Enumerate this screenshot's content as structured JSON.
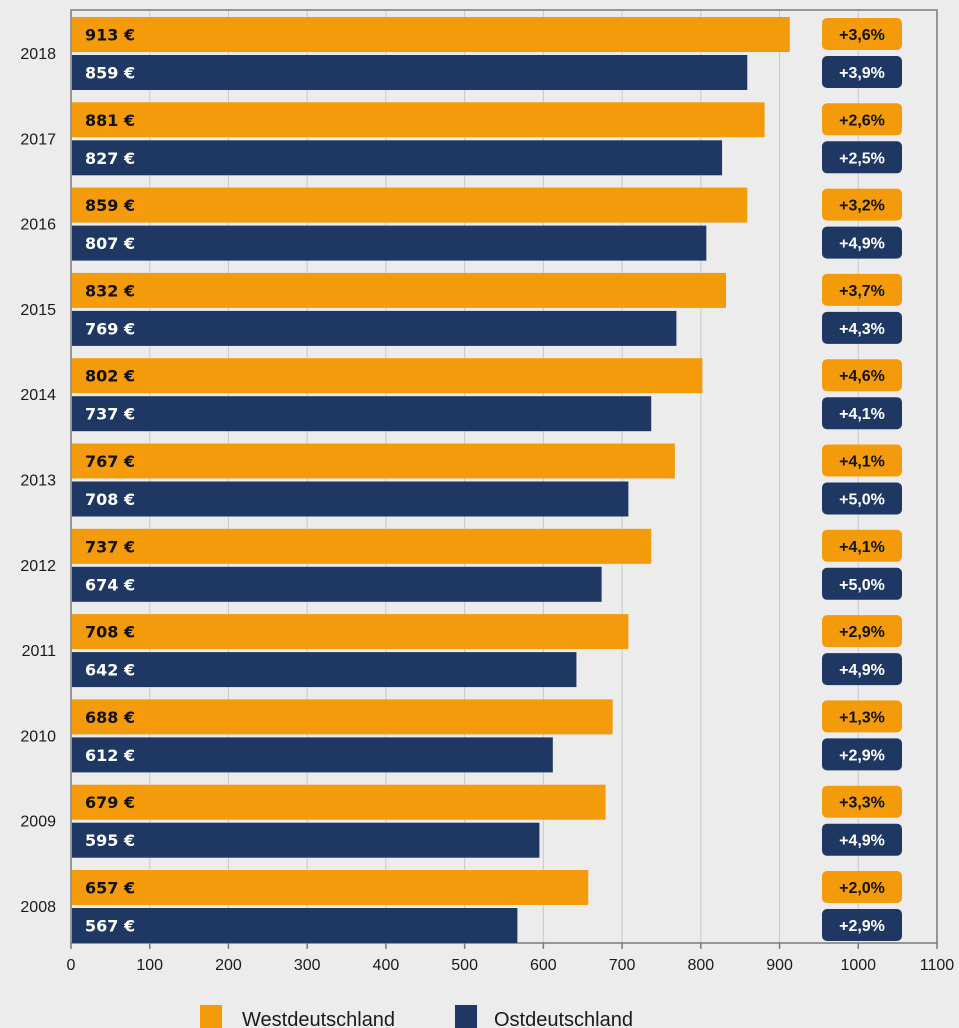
{
  "chart_data": {
    "type": "bar",
    "orientation": "horizontal",
    "categories": [
      "2018",
      "2017",
      "2016",
      "2015",
      "2014",
      "2013",
      "2012",
      "2011",
      "2010",
      "2009",
      "2008"
    ],
    "series": [
      {
        "name": "Westdeutschland",
        "color": "#f49b0b",
        "values": [
          913,
          881,
          859,
          832,
          802,
          767,
          737,
          708,
          688,
          679,
          657
        ],
        "value_labels": [
          "913 €",
          "881 €",
          "859 €",
          "832 €",
          "802 €",
          "767 €",
          "737 €",
          "708 €",
          "688 €",
          "679 €",
          "657 €"
        ],
        "change_labels": [
          "+3,6%",
          "+2,6%",
          "+3,2%",
          "+3,7%",
          "+4,6%",
          "+4,1%",
          "+4,1%",
          "+2,9%",
          "+1,3%",
          "+3,3%",
          "+2,0%"
        ]
      },
      {
        "name": "Ostdeutschland",
        "color": "#1f3863",
        "values": [
          859,
          827,
          807,
          769,
          737,
          708,
          674,
          642,
          612,
          595,
          567
        ],
        "value_labels": [
          "859 €",
          "827 €",
          "807 €",
          "769 €",
          "737 €",
          "708 €",
          "674 €",
          "642 €",
          "612 €",
          "595 €",
          "567 €"
        ],
        "change_labels": [
          "+3,9%",
          "+2,5%",
          "+4,9%",
          "+4,3%",
          "+4,1%",
          "+5,0%",
          "+5,0%",
          "+4,9%",
          "+2,9%",
          "+4,9%",
          "+2,9%"
        ]
      }
    ],
    "xlim": [
      0,
      1100
    ],
    "xticks": [
      0,
      100,
      200,
      300,
      400,
      500,
      600,
      700,
      800,
      900,
      1000,
      1100
    ],
    "grid": true,
    "legend_position": "bottom",
    "title": "",
    "xlabel": "",
    "ylabel": ""
  }
}
